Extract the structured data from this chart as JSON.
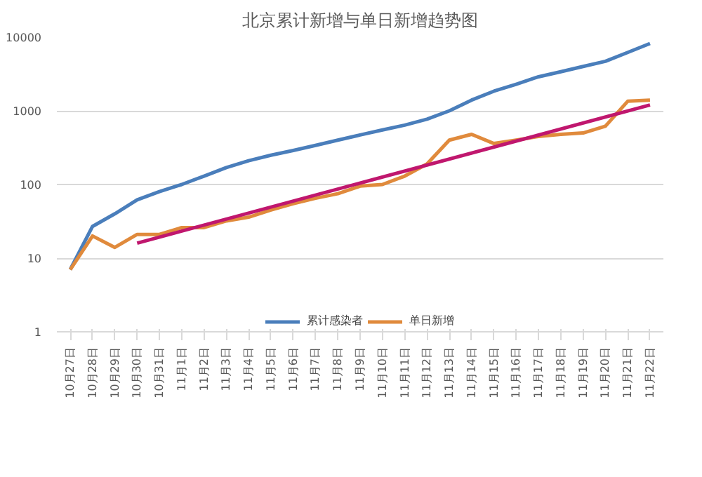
{
  "chart_data": {
    "type": "line",
    "title": "北京累计新增与单日新增趋势图",
    "categories": [
      "10月27日",
      "10月28日",
      "10月29日",
      "10月30日",
      "10月31日",
      "11月1日",
      "11月2日",
      "11月3日",
      "11月4日",
      "11月5日",
      "11月6日",
      "11月7日",
      "11月8日",
      "11月9日",
      "11月10日",
      "11月11日",
      "11月12日",
      "11月13日",
      "11月14日",
      "11月15日",
      "11月16日",
      "11月17日",
      "11月18日",
      "11月19日",
      "11月20日",
      "11月21日",
      "11月22日"
    ],
    "log": true,
    "ylim": [
      1,
      10000
    ],
    "yticks": [
      1,
      10,
      100,
      1000,
      10000
    ],
    "grid": "y",
    "legend": "bottom",
    "marker": "none",
    "series": [
      {
        "name": "累计感染者",
        "color": "#4a7ebb",
        "values": [
          7,
          27,
          40,
          62,
          80,
          100,
          130,
          170,
          210,
          250,
          290,
          340,
          400,
          470,
          550,
          640,
          770,
          1000,
          1400,
          1850,
          2300,
          2900,
          3400,
          4000,
          4700,
          6200,
          8200
        ]
      },
      {
        "name": "单日新增",
        "color": "#e08a3c",
        "values": [
          7,
          20,
          14,
          21,
          21,
          26,
          26,
          32,
          36,
          45,
          55,
          65,
          75,
          95,
          100,
          130,
          190,
          400,
          480,
          360,
          400,
          450,
          480,
          500,
          620,
          1350,
          1400
        ]
      },
      {
        "color": "#c0176e",
        "values": [
          null,
          null,
          null,
          16,
          null,
          null,
          null,
          null,
          null,
          null,
          null,
          null,
          null,
          null,
          null,
          null,
          null,
          null,
          null,
          null,
          null,
          null,
          null,
          null,
          null,
          null,
          1200
        ]
      }
    ]
  }
}
